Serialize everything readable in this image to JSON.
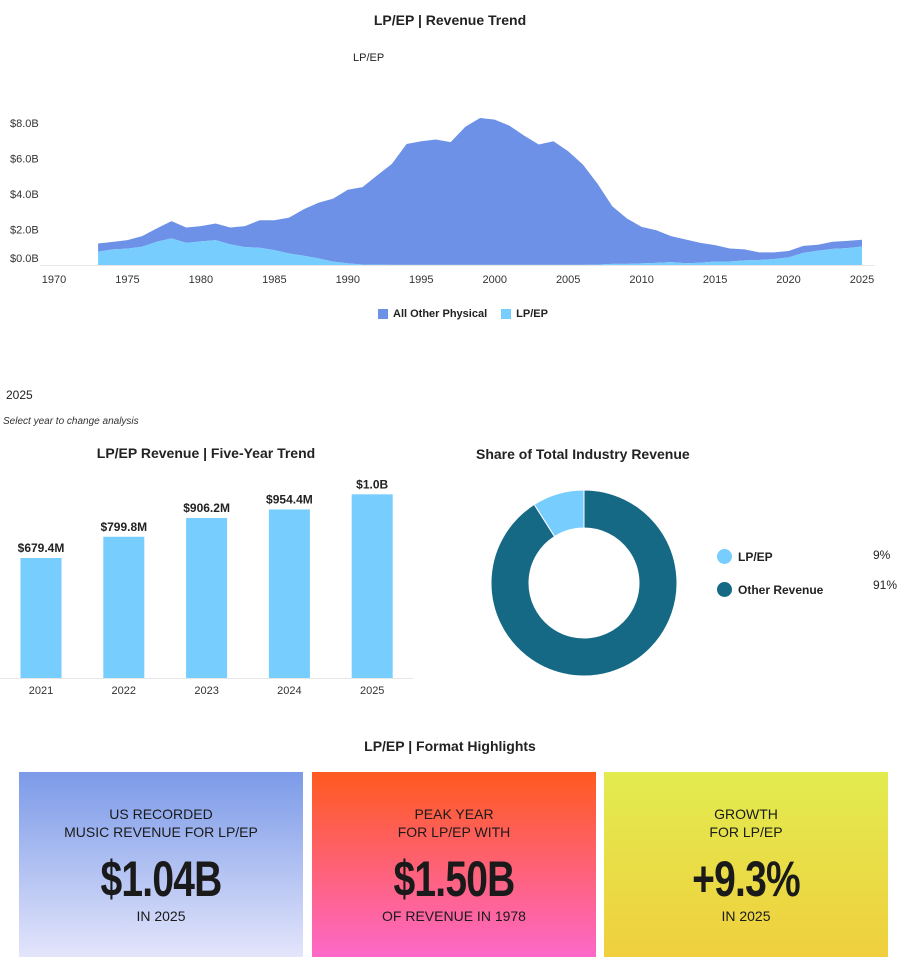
{
  "colors": {
    "all_other_physical": "#6e91e8",
    "lp_ep": "#77cdfe",
    "other_revenue": "#166985"
  },
  "chart_data": [
    {
      "type": "area",
      "title": "LP/EP | Revenue Trend",
      "subtitle": "LP/EP",
      "stacked": true,
      "x": [
        1973,
        1974,
        1975,
        1976,
        1977,
        1978,
        1979,
        1980,
        1981,
        1982,
        1983,
        1984,
        1985,
        1986,
        1987,
        1988,
        1989,
        1990,
        1991,
        1992,
        1993,
        1994,
        1995,
        1996,
        1997,
        1998,
        1999,
        2000,
        2001,
        2002,
        2003,
        2004,
        2005,
        2006,
        2007,
        2008,
        2009,
        2010,
        2011,
        2012,
        2013,
        2014,
        2015,
        2016,
        2017,
        2018,
        2019,
        2020,
        2021,
        2022,
        2023,
        2024,
        2025
      ],
      "series": [
        {
          "name": "LP/EP",
          "values": [
            0.75,
            0.88,
            0.92,
            1.03,
            1.31,
            1.5,
            1.25,
            1.33,
            1.4,
            1.16,
            1.01,
            0.97,
            0.84,
            0.65,
            0.52,
            0.37,
            0.19,
            0.09,
            0.03,
            0.02,
            0.01,
            0.01,
            0.01,
            0.01,
            0.01,
            0.01,
            0.01,
            0.01,
            0.01,
            0.01,
            0.01,
            0.01,
            0.01,
            0.01,
            0.02,
            0.06,
            0.06,
            0.09,
            0.12,
            0.16,
            0.1,
            0.13,
            0.2,
            0.2,
            0.26,
            0.28,
            0.34,
            0.43,
            0.68,
            0.8,
            0.91,
            0.95,
            1.04
          ]
        },
        {
          "name": "All Other Physical",
          "values": [
            0.46,
            0.42,
            0.48,
            0.6,
            0.75,
            0.97,
            0.86,
            0.86,
            0.94,
            0.95,
            1.18,
            1.55,
            1.68,
            2.02,
            2.62,
            3.14,
            3.55,
            4.15,
            4.36,
            5.03,
            5.69,
            6.81,
            6.96,
            7.06,
            6.91,
            7.78,
            8.27,
            8.18,
            7.84,
            7.28,
            6.78,
            6.96,
            6.4,
            5.65,
            4.56,
            3.25,
            2.56,
            2.06,
            1.84,
            1.47,
            1.34,
            1.12,
            0.92,
            0.73,
            0.62,
            0.43,
            0.37,
            0.36,
            0.4,
            0.34,
            0.4,
            0.41,
            0.38
          ]
        }
      ],
      "legend": [
        "All Other Physical",
        "LP/EP"
      ],
      "legend_position": "bottom",
      "xlim": [
        1970,
        2025
      ],
      "ylim": [
        0,
        8
      ],
      "y_ticks": [
        "$0.0B",
        "$2.0B",
        "$4.0B",
        "$6.0B",
        "$8.0B"
      ],
      "x_ticks": [
        "1970",
        "1975",
        "1980",
        "1985",
        "1990",
        "1995",
        "2000",
        "2005",
        "2010",
        "2015",
        "2020",
        "2025"
      ],
      "grid": false
    },
    {
      "type": "bar",
      "title": "LP/EP Revenue | Five-Year Trend",
      "categories": [
        "2021",
        "2022",
        "2023",
        "2024",
        "2025"
      ],
      "values": [
        679.4,
        799.8,
        906.2,
        954.4,
        1040
      ],
      "data_labels": [
        "$679.4M",
        "$799.8M",
        "$906.2M",
        "$954.4M",
        "$1.0B"
      ],
      "unit": "$M"
    },
    {
      "type": "pie",
      "title": "Share of Total Industry Revenue",
      "donut": true,
      "slices": [
        {
          "name": "LP/EP",
          "value": 9,
          "label": "9%"
        },
        {
          "name": "Other Revenue",
          "value": 91,
          "label": "91%"
        }
      ],
      "legend_position": "right"
    }
  ],
  "year_selector": {
    "value": "2025",
    "hint": "Select year to change analysis"
  },
  "highlights": {
    "title": "LP/EP | Format Highlights",
    "cards": [
      {
        "line1": "US Recorded",
        "line2": "Music Revenue for LP/EP",
        "value": "$1.04B",
        "sub": "In 2025"
      },
      {
        "line1": "Peak Year",
        "line2": "for LP/EP with",
        "value": "$1.50B",
        "sub": "of Revenue in 1978"
      },
      {
        "line1": "Growth",
        "line2": "for LP/EP",
        "value": "+9.3%",
        "sub": "In 2025"
      }
    ]
  }
}
